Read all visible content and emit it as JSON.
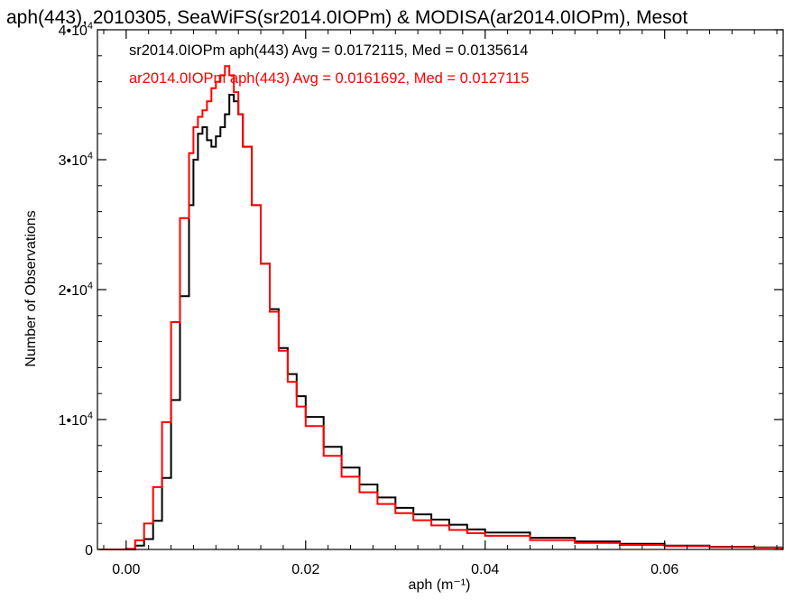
{
  "chart_data": {
    "type": "line",
    "title": "aph(443), 2010305, SeaWiFS(sr2014.0IOPm) & MODISA(ar2014.0IOPm), Mesot",
    "xlabel": "aph (m⁻¹)",
    "ylabel": "Number of Observations",
    "xlim": [
      -0.0032,
      0.0732
    ],
    "ylim": [
      0,
      40000
    ],
    "x_ticks": [
      0.0,
      0.02,
      0.04,
      0.06
    ],
    "x_tick_labels": [
      "0.00",
      "0.02",
      "0.04",
      "0.06"
    ],
    "y_ticks": [
      0,
      10000,
      20000,
      30000,
      40000
    ],
    "y_tick_labels": [
      {
        "mant": "0",
        "exp": ""
      },
      {
        "mant": "1•10",
        "exp": "4"
      },
      {
        "mant": "2•10",
        "exp": "4"
      },
      {
        "mant": "3•10",
        "exp": "4"
      },
      {
        "mant": "4•10",
        "exp": "4"
      }
    ],
    "legend_placement": "top-left",
    "grid": false,
    "series": [
      {
        "name": "sr2014.0IOPm aph(443) Avg = 0.0172115, Med = 0.0135614",
        "color": "#000000",
        "x": [
          -0.003,
          0.0,
          0.001,
          0.002,
          0.003,
          0.004,
          0.005,
          0.006,
          0.007,
          0.0075,
          0.008,
          0.0085,
          0.009,
          0.0095,
          0.01,
          0.0105,
          0.011,
          0.0115,
          0.012,
          0.0125,
          0.013,
          0.014,
          0.015,
          0.016,
          0.017,
          0.018,
          0.019,
          0.02,
          0.022,
          0.024,
          0.026,
          0.028,
          0.03,
          0.032,
          0.034,
          0.036,
          0.038,
          0.04,
          0.045,
          0.05,
          0.055,
          0.06,
          0.065,
          0.07,
          0.073
        ],
        "y": [
          0,
          0,
          300,
          800,
          2200,
          5500,
          11500,
          19500,
          26500,
          30000,
          32000,
          32500,
          31500,
          31000,
          31800,
          32500,
          33500,
          35000,
          34500,
          33500,
          31000,
          26500,
          22000,
          18500,
          15500,
          13500,
          11800,
          10200,
          7900,
          6300,
          5000,
          4000,
          3200,
          2700,
          2300,
          1900,
          1550,
          1300,
          900,
          620,
          430,
          300,
          210,
          160,
          130
        ]
      },
      {
        "name": "ar2014.0IOPm aph(443) Avg = 0.0161692, Med = 0.0127115",
        "color": "#ff0000",
        "x": [
          -0.003,
          0.0,
          0.001,
          0.002,
          0.003,
          0.004,
          0.005,
          0.006,
          0.007,
          0.0075,
          0.008,
          0.0085,
          0.009,
          0.0095,
          0.01,
          0.0105,
          0.011,
          0.0115,
          0.012,
          0.0125,
          0.013,
          0.014,
          0.015,
          0.016,
          0.017,
          0.018,
          0.019,
          0.02,
          0.022,
          0.024,
          0.026,
          0.028,
          0.03,
          0.032,
          0.034,
          0.036,
          0.038,
          0.04,
          0.045,
          0.05,
          0.055,
          0.06,
          0.065,
          0.07,
          0.073
        ],
        "y": [
          0,
          50,
          700,
          2000,
          4800,
          9800,
          17500,
          25500,
          30500,
          32500,
          33300,
          33800,
          34500,
          35500,
          36000,
          36500,
          37200,
          36500,
          35200,
          33500,
          31000,
          26500,
          22000,
          18300,
          15300,
          12900,
          11000,
          9500,
          7200,
          5600,
          4400,
          3500,
          2800,
          2250,
          1850,
          1500,
          1250,
          1050,
          720,
          500,
          350,
          250,
          180,
          140,
          120
        ]
      }
    ]
  }
}
